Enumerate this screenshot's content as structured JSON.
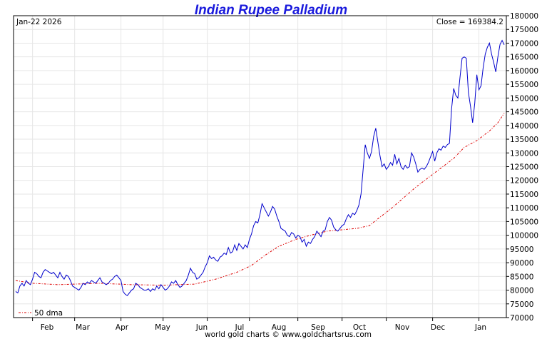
{
  "chart_data": {
    "type": "line",
    "title": "Indian Rupee Palladium",
    "date_label": "Jan-22  2026",
    "close_label": "Close = 169384.2",
    "footer": "world gold charts © www.goldchartsrus.com",
    "legend": {
      "entries": [
        "50 dma"
      ],
      "placement": "bottom-left"
    },
    "xlabel": "",
    "ylabel": "",
    "ylim": [
      70000,
      180000
    ],
    "y_ticks": [
      70000,
      75000,
      80000,
      85000,
      90000,
      95000,
      100000,
      105000,
      110000,
      115000,
      120000,
      125000,
      130000,
      135000,
      140000,
      145000,
      150000,
      155000,
      160000,
      165000,
      170000,
      175000,
      180000
    ],
    "x_ticks": [
      "Feb",
      "Mar",
      "Apr",
      "May",
      "Jun",
      "Jul",
      "Aug",
      "Sep",
      "Oct",
      "Nov",
      "Dec",
      "Jan"
    ],
    "grid": true,
    "colors": {
      "price": "#0000cc",
      "dma": "#dd0000",
      "title": "#1a1adc",
      "grid": "#e6e6e6"
    },
    "series": [
      {
        "style": "solid",
        "color": "#0000cc",
        "points": [
          [
            0,
            79500
          ],
          [
            1,
            79000
          ],
          [
            2,
            81500
          ],
          [
            3,
            82500
          ],
          [
            4,
            81500
          ],
          [
            5,
            83500
          ],
          [
            6,
            82500
          ],
          [
            7,
            82000
          ],
          [
            8,
            84000
          ],
          [
            9,
            86500
          ],
          [
            10,
            86000
          ],
          [
            11,
            85000
          ],
          [
            12,
            84500
          ],
          [
            13,
            86500
          ],
          [
            14,
            87500
          ],
          [
            15,
            87000
          ],
          [
            16,
            86500
          ],
          [
            17,
            86000
          ],
          [
            18,
            86500
          ],
          [
            19,
            85500
          ],
          [
            20,
            84500
          ],
          [
            21,
            86500
          ],
          [
            22,
            85000
          ],
          [
            23,
            84000
          ],
          [
            24,
            85500
          ],
          [
            25,
            85000
          ],
          [
            26,
            83500
          ],
          [
            27,
            81500
          ],
          [
            28,
            81000
          ],
          [
            29,
            80500
          ],
          [
            30,
            80000
          ],
          [
            31,
            81000
          ],
          [
            32,
            82500
          ],
          [
            33,
            82000
          ],
          [
            34,
            83000
          ],
          [
            35,
            82500
          ],
          [
            36,
            83500
          ],
          [
            37,
            83000
          ],
          [
            38,
            82500
          ],
          [
            39,
            83500
          ],
          [
            40,
            84500
          ],
          [
            41,
            83000
          ],
          [
            42,
            82500
          ],
          [
            43,
            82000
          ],
          [
            44,
            82500
          ],
          [
            45,
            83500
          ],
          [
            46,
            84000
          ],
          [
            47,
            85000
          ],
          [
            48,
            85500
          ],
          [
            49,
            84500
          ],
          [
            50,
            83500
          ],
          [
            51,
            79500
          ],
          [
            52,
            78500
          ],
          [
            53,
            78000
          ],
          [
            54,
            79000
          ],
          [
            55,
            80000
          ],
          [
            56,
            80500
          ],
          [
            57,
            82500
          ],
          [
            58,
            82000
          ],
          [
            59,
            81000
          ],
          [
            60,
            80500
          ],
          [
            61,
            80000
          ],
          [
            62,
            80000
          ],
          [
            63,
            80500
          ],
          [
            64,
            79500
          ],
          [
            65,
            80500
          ],
          [
            66,
            80000
          ],
          [
            67,
            81500
          ],
          [
            68,
            80500
          ],
          [
            69,
            82000
          ],
          [
            70,
            81000
          ],
          [
            71,
            80000
          ],
          [
            72,
            80500
          ],
          [
            73,
            81500
          ],
          [
            74,
            83000
          ],
          [
            75,
            82500
          ],
          [
            76,
            83500
          ],
          [
            77,
            82000
          ],
          [
            78,
            81000
          ],
          [
            79,
            81500
          ],
          [
            80,
            82500
          ],
          [
            81,
            83500
          ],
          [
            82,
            85500
          ],
          [
            83,
            88000
          ],
          [
            84,
            86500
          ],
          [
            85,
            86000
          ],
          [
            86,
            84000
          ],
          [
            87,
            84500
          ],
          [
            88,
            85500
          ],
          [
            89,
            86500
          ],
          [
            90,
            88500
          ],
          [
            91,
            90000
          ],
          [
            92,
            92500
          ],
          [
            93,
            91500
          ],
          [
            94,
            92000
          ],
          [
            95,
            91000
          ],
          [
            96,
            90500
          ],
          [
            97,
            92000
          ],
          [
            98,
            92500
          ],
          [
            99,
            93500
          ],
          [
            100,
            93000
          ],
          [
            101,
            95500
          ],
          [
            102,
            93500
          ],
          [
            103,
            94000
          ],
          [
            104,
            96500
          ],
          [
            105,
            94500
          ],
          [
            106,
            97000
          ],
          [
            107,
            96000
          ],
          [
            108,
            95000
          ],
          [
            109,
            96500
          ],
          [
            110,
            95500
          ],
          [
            111,
            98500
          ],
          [
            112,
            100500
          ],
          [
            113,
            103500
          ],
          [
            114,
            105000
          ],
          [
            115,
            104500
          ],
          [
            116,
            107500
          ],
          [
            117,
            111500
          ],
          [
            118,
            110000
          ],
          [
            119,
            108500
          ],
          [
            120,
            107000
          ],
          [
            121,
            108500
          ],
          [
            122,
            110500
          ],
          [
            123,
            109500
          ],
          [
            124,
            107000
          ],
          [
            125,
            105000
          ],
          [
            126,
            102500
          ],
          [
            127,
            102000
          ],
          [
            128,
            101500
          ],
          [
            129,
            100000
          ],
          [
            130,
            99500
          ],
          [
            131,
            101000
          ],
          [
            132,
            100500
          ],
          [
            133,
            99000
          ],
          [
            134,
            100000
          ],
          [
            135,
            99500
          ],
          [
            136,
            97500
          ],
          [
            137,
            98500
          ],
          [
            138,
            96000
          ],
          [
            139,
            97500
          ],
          [
            140,
            97000
          ],
          [
            141,
            98500
          ],
          [
            142,
            99500
          ],
          [
            143,
            101500
          ],
          [
            144,
            100500
          ],
          [
            145,
            99500
          ],
          [
            146,
            101500
          ],
          [
            147,
            102000
          ],
          [
            148,
            105000
          ],
          [
            149,
            106500
          ],
          [
            150,
            105500
          ],
          [
            151,
            103000
          ],
          [
            152,
            102000
          ],
          [
            153,
            101500
          ],
          [
            154,
            102500
          ],
          [
            155,
            103500
          ],
          [
            156,
            104000
          ],
          [
            157,
            106000
          ],
          [
            158,
            107500
          ],
          [
            159,
            106500
          ],
          [
            160,
            108000
          ],
          [
            161,
            107500
          ],
          [
            162,
            109000
          ],
          [
            163,
            111000
          ],
          [
            164,
            115000
          ],
          [
            165,
            124000
          ],
          [
            166,
            133000
          ],
          [
            167,
            130000
          ],
          [
            168,
            128000
          ],
          [
            169,
            130500
          ],
          [
            170,
            136000
          ],
          [
            171,
            139000
          ],
          [
            172,
            134000
          ],
          [
            173,
            129000
          ],
          [
            174,
            125000
          ],
          [
            175,
            126000
          ],
          [
            176,
            124000
          ],
          [
            177,
            125000
          ],
          [
            178,
            126500
          ],
          [
            179,
            125500
          ],
          [
            180,
            129500
          ],
          [
            181,
            126000
          ],
          [
            182,
            128000
          ],
          [
            183,
            125000
          ],
          [
            184,
            124000
          ],
          [
            185,
            125500
          ],
          [
            186,
            124500
          ],
          [
            187,
            125000
          ],
          [
            188,
            130000
          ],
          [
            189,
            128500
          ],
          [
            190,
            126000
          ],
          [
            191,
            123000
          ],
          [
            192,
            124000
          ],
          [
            193,
            124500
          ],
          [
            194,
            124000
          ],
          [
            195,
            125000
          ],
          [
            196,
            126500
          ],
          [
            197,
            128500
          ],
          [
            198,
            130500
          ],
          [
            199,
            127000
          ],
          [
            200,
            130000
          ],
          [
            201,
            131500
          ],
          [
            202,
            131000
          ],
          [
            203,
            132500
          ],
          [
            204,
            132000
          ],
          [
            205,
            133000
          ],
          [
            206,
            133500
          ],
          [
            207,
            146000
          ],
          [
            208,
            153500
          ],
          [
            209,
            151000
          ],
          [
            210,
            150000
          ],
          [
            211,
            157500
          ],
          [
            212,
            164500
          ],
          [
            213,
            165000
          ],
          [
            214,
            164500
          ],
          [
            215,
            152000
          ],
          [
            216,
            147000
          ],
          [
            217,
            141000
          ],
          [
            218,
            148000
          ],
          [
            219,
            158500
          ],
          [
            220,
            153000
          ],
          [
            221,
            154500
          ],
          [
            222,
            161000
          ],
          [
            223,
            166000
          ],
          [
            224,
            168500
          ],
          [
            225,
            170000
          ],
          [
            226,
            166000
          ],
          [
            227,
            163000
          ],
          [
            228,
            159500
          ],
          [
            229,
            165000
          ],
          [
            230,
            169500
          ],
          [
            231,
            171000
          ],
          [
            232,
            169384.2
          ]
        ]
      },
      {
        "name": "50 dma",
        "style": "dashdot",
        "color": "#dd0000",
        "points": [
          [
            0,
            83500
          ],
          [
            8,
            82500
          ],
          [
            20,
            82000
          ],
          [
            40,
            82500
          ],
          [
            55,
            82000
          ],
          [
            70,
            81800
          ],
          [
            85,
            82200
          ],
          [
            95,
            84000
          ],
          [
            105,
            86500
          ],
          [
            112,
            89000
          ],
          [
            118,
            92500
          ],
          [
            125,
            96000
          ],
          [
            133,
            98500
          ],
          [
            140,
            100000
          ],
          [
            148,
            101500
          ],
          [
            155,
            102000
          ],
          [
            162,
            102500
          ],
          [
            168,
            103500
          ],
          [
            172,
            106000
          ],
          [
            178,
            109500
          ],
          [
            184,
            113500
          ],
          [
            190,
            117500
          ],
          [
            196,
            121000
          ],
          [
            202,
            124500
          ],
          [
            208,
            128000
          ],
          [
            213,
            132000
          ],
          [
            219,
            134500
          ],
          [
            225,
            138000
          ],
          [
            229,
            141000
          ],
          [
            232,
            144500
          ]
        ]
      }
    ]
  }
}
